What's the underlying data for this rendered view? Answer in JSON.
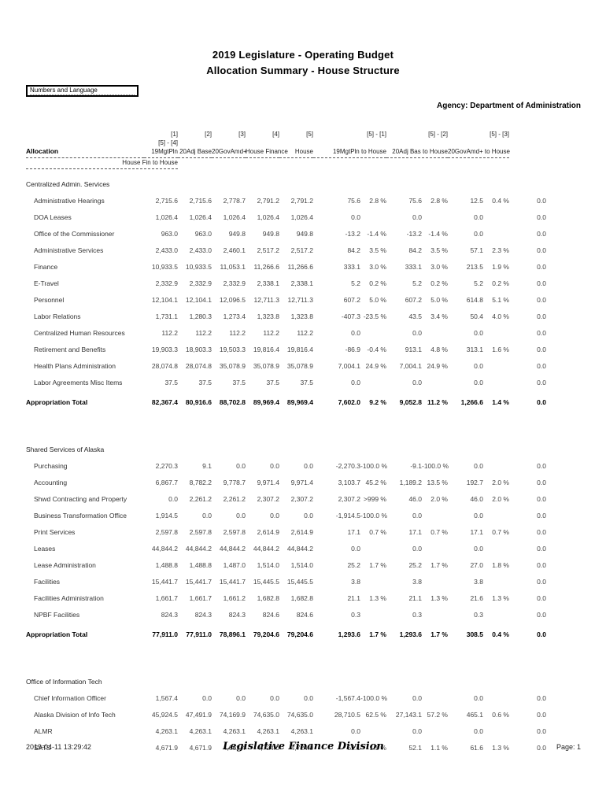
{
  "header": {
    "title_line1": "2019 Legislature - Operating Budget",
    "title_line2": "Allocation Summary - House Structure",
    "tab_label": "Numbers and Language",
    "agency_label": "Agency: Department of Administration"
  },
  "table": {
    "allocation_header": "Allocation",
    "value_columns": [
      {
        "num": "[1]",
        "label": "19MgtPln"
      },
      {
        "num": "[2]",
        "label": "20Adj Base"
      },
      {
        "num": "[3]",
        "label": "20GovAmd+"
      },
      {
        "num": "[4]",
        "label": "House Finance"
      },
      {
        "num": "[5]",
        "label": "House"
      }
    ],
    "diff_columns": [
      {
        "num": "[5] - [1]",
        "label": "19MgtPln to House"
      },
      {
        "num": "[5] - [2]",
        "label": "20Adj Bas to House"
      },
      {
        "num": "[5] - [3]",
        "label": "20GovAmd+ to House"
      },
      {
        "num": "[5] - [4]",
        "label": "House Fin to House"
      }
    ],
    "sections": [
      {
        "name": "Centralized Admin. Services",
        "rows": [
          {
            "label": "Administrative Hearings",
            "values": [
              "2,715.6",
              "2,715.6",
              "2,778.7",
              "2,791.2",
              "2,791.2"
            ],
            "diffs": [
              [
                "75.6",
                "2.8 %"
              ],
              [
                "75.6",
                "2.8 %"
              ],
              [
                "12.5",
                "0.4 %"
              ],
              [
                "0.0",
                ""
              ]
            ]
          },
          {
            "label": "DOA Leases",
            "values": [
              "1,026.4",
              "1,026.4",
              "1,026.4",
              "1,026.4",
              "1,026.4"
            ],
            "diffs": [
              [
                "0.0",
                ""
              ],
              [
                "0.0",
                ""
              ],
              [
                "0.0",
                ""
              ],
              [
                "0.0",
                ""
              ]
            ]
          },
          {
            "label": "Office of the Commissioner",
            "values": [
              "963.0",
              "963.0",
              "949.8",
              "949.8",
              "949.8"
            ],
            "diffs": [
              [
                "-13.2",
                "-1.4 %"
              ],
              [
                "-13.2",
                "-1.4 %"
              ],
              [
                "0.0",
                ""
              ],
              [
                "0.0",
                ""
              ]
            ]
          },
          {
            "label": "Administrative Services",
            "values": [
              "2,433.0",
              "2,433.0",
              "2,460.1",
              "2,517.2",
              "2,517.2"
            ],
            "diffs": [
              [
                "84.2",
                "3.5 %"
              ],
              [
                "84.2",
                "3.5 %"
              ],
              [
                "57.1",
                "2.3 %"
              ],
              [
                "0.0",
                ""
              ]
            ]
          },
          {
            "label": "Finance",
            "values": [
              "10,933.5",
              "10,933.5",
              "11,053.1",
              "11,266.6",
              "11,266.6"
            ],
            "diffs": [
              [
                "333.1",
                "3.0 %"
              ],
              [
                "333.1",
                "3.0 %"
              ],
              [
                "213.5",
                "1.9 %"
              ],
              [
                "0.0",
                ""
              ]
            ]
          },
          {
            "label": "E-Travel",
            "values": [
              "2,332.9",
              "2,332.9",
              "2,332.9",
              "2,338.1",
              "2,338.1"
            ],
            "diffs": [
              [
                "5.2",
                "0.2 %"
              ],
              [
                "5.2",
                "0.2 %"
              ],
              [
                "5.2",
                "0.2 %"
              ],
              [
                "0.0",
                ""
              ]
            ]
          },
          {
            "label": "Personnel",
            "values": [
              "12,104.1",
              "12,104.1",
              "12,096.5",
              "12,711.3",
              "12,711.3"
            ],
            "diffs": [
              [
                "607.2",
                "5.0 %"
              ],
              [
                "607.2",
                "5.0 %"
              ],
              [
                "614.8",
                "5.1 %"
              ],
              [
                "0.0",
                ""
              ]
            ]
          },
          {
            "label": "Labor Relations",
            "values": [
              "1,731.1",
              "1,280.3",
              "1,273.4",
              "1,323.8",
              "1,323.8"
            ],
            "diffs": [
              [
                "-407.3",
                "-23.5 %"
              ],
              [
                "43.5",
                "3.4 %"
              ],
              [
                "50.4",
                "4.0 %"
              ],
              [
                "0.0",
                ""
              ]
            ]
          },
          {
            "label": "Centralized Human Resources",
            "values": [
              "112.2",
              "112.2",
              "112.2",
              "112.2",
              "112.2"
            ],
            "diffs": [
              [
                "0.0",
                ""
              ],
              [
                "0.0",
                ""
              ],
              [
                "0.0",
                ""
              ],
              [
                "0.0",
                ""
              ]
            ]
          },
          {
            "label": "Retirement and Benefits",
            "values": [
              "19,903.3",
              "18,903.3",
              "19,503.3",
              "19,816.4",
              "19,816.4"
            ],
            "diffs": [
              [
                "-86.9",
                "-0.4 %"
              ],
              [
                "913.1",
                "4.8 %"
              ],
              [
                "313.1",
                "1.6 %"
              ],
              [
                "0.0",
                ""
              ]
            ]
          },
          {
            "label": "Health Plans Administration",
            "values": [
              "28,074.8",
              "28,074.8",
              "35,078.9",
              "35,078.9",
              "35,078.9"
            ],
            "diffs": [
              [
                "7,004.1",
                "24.9 %"
              ],
              [
                "7,004.1",
                "24.9 %"
              ],
              [
                "0.0",
                ""
              ],
              [
                "0.0",
                ""
              ]
            ]
          },
          {
            "label": "Labor Agreements Misc Items",
            "values": [
              "37.5",
              "37.5",
              "37.5",
              "37.5",
              "37.5"
            ],
            "diffs": [
              [
                "0.0",
                ""
              ],
              [
                "0.0",
                ""
              ],
              [
                "0.0",
                ""
              ],
              [
                "0.0",
                ""
              ]
            ]
          }
        ],
        "total": {
          "label": "Appropriation Total",
          "values": [
            "82,367.4",
            "80,916.6",
            "88,702.8",
            "89,969.4",
            "89,969.4"
          ],
          "diffs": [
            [
              "7,602.0",
              "9.2 %"
            ],
            [
              "9,052.8",
              "11.2 %"
            ],
            [
              "1,266.6",
              "1.4 %"
            ],
            [
              "0.0",
              ""
            ]
          ]
        }
      },
      {
        "name": "Shared Services of Alaska",
        "rows": [
          {
            "label": "Purchasing",
            "values": [
              "2,270.3",
              "9.1",
              "0.0",
              "0.0",
              "0.0"
            ],
            "diffs": [
              [
                "-2,270.3",
                "-100.0 %"
              ],
              [
                "-9.1",
                "-100.0 %"
              ],
              [
                "0.0",
                ""
              ],
              [
                "0.0",
                ""
              ]
            ]
          },
          {
            "label": "Accounting",
            "values": [
              "6,867.7",
              "8,782.2",
              "9,778.7",
              "9,971.4",
              "9,971.4"
            ],
            "diffs": [
              [
                "3,103.7",
                "45.2 %"
              ],
              [
                "1,189.2",
                "13.5 %"
              ],
              [
                "192.7",
                "2.0 %"
              ],
              [
                "0.0",
                ""
              ]
            ]
          },
          {
            "label": "Shwd Contracting and Property",
            "values": [
              "0.0",
              "2,261.2",
              "2,261.2",
              "2,307.2",
              "2,307.2"
            ],
            "diffs": [
              [
                "2,307.2",
                ">999 %"
              ],
              [
                "46.0",
                "2.0 %"
              ],
              [
                "46.0",
                "2.0 %"
              ],
              [
                "0.0",
                ""
              ]
            ]
          },
          {
            "label": "Business Transformation Office",
            "values": [
              "1,914.5",
              "0.0",
              "0.0",
              "0.0",
              "0.0"
            ],
            "diffs": [
              [
                "-1,914.5",
                "-100.0 %"
              ],
              [
                "0.0",
                ""
              ],
              [
                "0.0",
                ""
              ],
              [
                "0.0",
                ""
              ]
            ]
          },
          {
            "label": "Print Services",
            "values": [
              "2,597.8",
              "2,597.8",
              "2,597.8",
              "2,614.9",
              "2,614.9"
            ],
            "diffs": [
              [
                "17.1",
                "0.7 %"
              ],
              [
                "17.1",
                "0.7 %"
              ],
              [
                "17.1",
                "0.7 %"
              ],
              [
                "0.0",
                ""
              ]
            ]
          },
          {
            "label": "Leases",
            "values": [
              "44,844.2",
              "44,844.2",
              "44,844.2",
              "44,844.2",
              "44,844.2"
            ],
            "diffs": [
              [
                "0.0",
                ""
              ],
              [
                "0.0",
                ""
              ],
              [
                "0.0",
                ""
              ],
              [
                "0.0",
                ""
              ]
            ]
          },
          {
            "label": "Lease Administration",
            "values": [
              "1,488.8",
              "1,488.8",
              "1,487.0",
              "1,514.0",
              "1,514.0"
            ],
            "diffs": [
              [
                "25.2",
                "1.7 %"
              ],
              [
                "25.2",
                "1.7 %"
              ],
              [
                "27.0",
                "1.8 %"
              ],
              [
                "0.0",
                ""
              ]
            ]
          },
          {
            "label": "Facilities",
            "values": [
              "15,441.7",
              "15,441.7",
              "15,441.7",
              "15,445.5",
              "15,445.5"
            ],
            "diffs": [
              [
                "3.8",
                ""
              ],
              [
                "3.8",
                ""
              ],
              [
                "3.8",
                ""
              ],
              [
                "0.0",
                ""
              ]
            ]
          },
          {
            "label": "Facilities Administration",
            "values": [
              "1,661.7",
              "1,661.7",
              "1,661.2",
              "1,682.8",
              "1,682.8"
            ],
            "diffs": [
              [
                "21.1",
                "1.3 %"
              ],
              [
                "21.1",
                "1.3 %"
              ],
              [
                "21.6",
                "1.3 %"
              ],
              [
                "0.0",
                ""
              ]
            ]
          },
          {
            "label": "NPBF Facilities",
            "values": [
              "824.3",
              "824.3",
              "824.3",
              "824.6",
              "824.6"
            ],
            "diffs": [
              [
                "0.3",
                ""
              ],
              [
                "0.3",
                ""
              ],
              [
                "0.3",
                ""
              ],
              [
                "0.0",
                ""
              ]
            ]
          }
        ],
        "total": {
          "label": "Appropriation Total",
          "values": [
            "77,911.0",
            "77,911.0",
            "78,896.1",
            "79,204.6",
            "79,204.6"
          ],
          "diffs": [
            [
              "1,293.6",
              "1.7 %"
            ],
            [
              "1,293.6",
              "1.7 %"
            ],
            [
              "308.5",
              "0.4 %"
            ],
            [
              "0.0",
              ""
            ]
          ]
        }
      },
      {
        "name": "Office of Information Tech",
        "rows": [
          {
            "label": "Chief Information Officer",
            "values": [
              "1,567.4",
              "0.0",
              "0.0",
              "0.0",
              "0.0"
            ],
            "diffs": [
              [
                "-1,567.4",
                "-100.0 %"
              ],
              [
                "0.0",
                ""
              ],
              [
                "0.0",
                ""
              ],
              [
                "0.0",
                ""
              ]
            ]
          },
          {
            "label": "Alaska Division of Info Tech",
            "values": [
              "45,924.5",
              "47,491.9",
              "74,169.9",
              "74,635.0",
              "74,635.0"
            ],
            "diffs": [
              [
                "28,710.5",
                "62.5 %"
              ],
              [
                "27,143.1",
                "57.2 %"
              ],
              [
                "465.1",
                "0.6 %"
              ],
              [
                "0.0",
                ""
              ]
            ]
          },
          {
            "label": "ALMR",
            "values": [
              "4,263.1",
              "4,263.1",
              "4,263.1",
              "4,263.1",
              "4,263.1"
            ],
            "diffs": [
              [
                "0.0",
                ""
              ],
              [
                "0.0",
                ""
              ],
              [
                "0.0",
                ""
              ],
              [
                "0.0",
                ""
              ]
            ]
          },
          {
            "label": "SATS",
            "values": [
              "4,671.9",
              "4,671.9",
              "4,662.4",
              "4,724.0",
              "4,724.0"
            ],
            "diffs": [
              [
                "52.1",
                "1.1 %"
              ],
              [
                "52.1",
                "1.1 %"
              ],
              [
                "61.6",
                "1.3 %"
              ],
              [
                "0.0",
                ""
              ]
            ]
          }
        ],
        "total": null
      }
    ]
  },
  "footer": {
    "timestamp": "2019-04-11 13:29:42",
    "division": "Legislative Finance Division",
    "page_label": "Page: 1"
  }
}
